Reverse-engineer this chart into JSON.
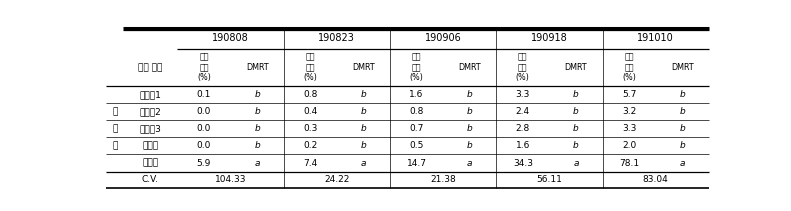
{
  "date_groups": [
    "190808",
    "190823",
    "190906",
    "190918",
    "191010"
  ],
  "row_header_label": "조사 일자",
  "row_labels": [
    "시험구1",
    "시험구2",
    "시험구3",
    "대조구",
    "무처리"
  ],
  "side_labels": [
    "",
    "처",
    "리",
    "구",
    ""
  ],
  "col_sub_header": [
    "이병\n과율\n(%)",
    "DMRT"
  ],
  "data": [
    [
      "0.1",
      "b",
      "0.8",
      "b",
      "1.6",
      "b",
      "3.3",
      "b",
      "5.7",
      "b"
    ],
    [
      "0.0",
      "b",
      "0.4",
      "b",
      "0.8",
      "b",
      "2.4",
      "b",
      "3.2",
      "b"
    ],
    [
      "0.0",
      "b",
      "0.3",
      "b",
      "0.7",
      "b",
      "2.8",
      "b",
      "3.3",
      "b"
    ],
    [
      "0.0",
      "b",
      "0.2",
      "b",
      "0.5",
      "b",
      "1.6",
      "b",
      "2.0",
      "b"
    ],
    [
      "5.9",
      "a",
      "7.4",
      "a",
      "14.7",
      "a",
      "34.3",
      "a",
      "78.1",
      "a"
    ]
  ],
  "cv_label": "C.V.",
  "cv_values": [
    "104.33",
    "24.22",
    "21.38",
    "56.11",
    "83.04"
  ],
  "bg_color": "#ffffff",
  "line_color": "#000000",
  "font_color": "#000000"
}
